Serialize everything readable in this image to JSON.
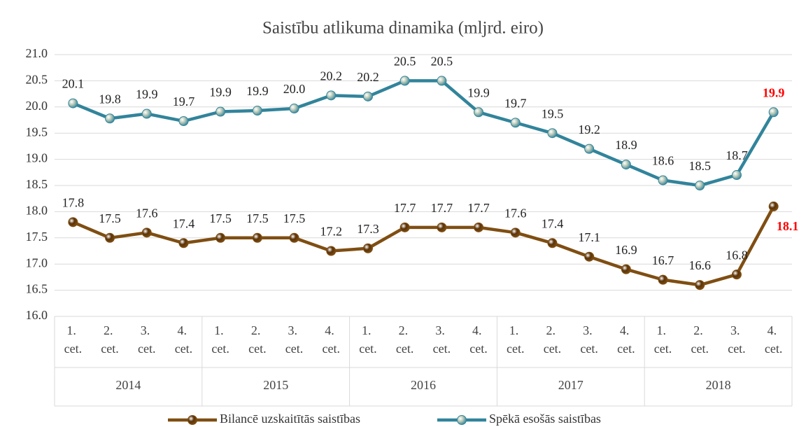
{
  "chart_data": {
    "type": "line",
    "title": "Saistību atlikuma dinamika (mljrd. eiro)",
    "categories": [
      "1. cet.",
      "2. cet.",
      "3. cet.",
      "4. cet.",
      "1. cet.",
      "2. cet.",
      "3. cet.",
      "4. cet.",
      "1. cet.",
      "2. cet.",
      "3. cet.",
      "4. cet.",
      "1. cet.",
      "2. cet.",
      "3. cet.",
      "4. cet.",
      "1. cet.",
      "2. cet.",
      "3. cet.",
      "4. cet."
    ],
    "groups": [
      "2014",
      "2015",
      "2016",
      "2017",
      "2018"
    ],
    "series": [
      {
        "name": "Bilancē uzskaitītās saistības",
        "color": "#7f4e12",
        "marker_color": "#5a3208",
        "values": [
          17.8,
          17.5,
          17.6,
          17.4,
          17.5,
          17.5,
          17.5,
          17.25,
          17.3,
          17.7,
          17.7,
          17.7,
          17.6,
          17.4,
          17.14,
          16.9,
          16.7,
          16.6,
          16.8,
          18.1
        ],
        "value_labels": [
          "17.8",
          "17.5",
          "17.6",
          "17.4",
          "17.5",
          "17.5",
          "17.5",
          "17.2",
          "17.3",
          "17.7",
          "17.7",
          "17.7",
          "17.6",
          "17.4",
          "17.1",
          "16.9",
          "16.7",
          "16.6",
          "16.8",
          "18.1"
        ]
      },
      {
        "name": "Spēkā esošās saistības",
        "color": "#31849b",
        "marker_color": "#b9c9b8",
        "values": [
          20.07,
          19.78,
          19.87,
          19.73,
          19.91,
          19.93,
          19.97,
          20.22,
          20.2,
          20.5,
          20.5,
          19.9,
          19.7,
          19.5,
          19.2,
          18.9,
          18.6,
          18.5,
          18.7,
          19.9
        ],
        "value_labels": [
          "20.1",
          "19.8",
          "19.9",
          "19.7",
          "19.9",
          "19.9",
          "20.0",
          "20.2",
          "20.2",
          "20.5",
          "20.5",
          "19.9",
          "19.7",
          "19.5",
          "19.2",
          "18.9",
          "18.6",
          "18.5",
          "18.7",
          "19.9"
        ]
      }
    ],
    "highlight_color": "#ff0000",
    "ylim": [
      16,
      21
    ],
    "yticks": [
      {
        "value": 16,
        "label": "16.0"
      },
      {
        "value": 16.5,
        "label": "16.5"
      },
      {
        "value": 17,
        "label": "17.0"
      },
      {
        "value": 17.5,
        "label": "17.5"
      },
      {
        "value": 18,
        "label": "18.0"
      },
      {
        "value": 18.5,
        "label": "18.5"
      },
      {
        "value": 19,
        "label": "19.0"
      },
      {
        "value": 19.5,
        "label": "19.5"
      },
      {
        "value": 20,
        "label": "20.0"
      },
      {
        "value": 20.5,
        "label": "20.5"
      },
      {
        "value": 21,
        "label": "21.0"
      }
    ],
    "grid": true,
    "legend": "bottom"
  }
}
